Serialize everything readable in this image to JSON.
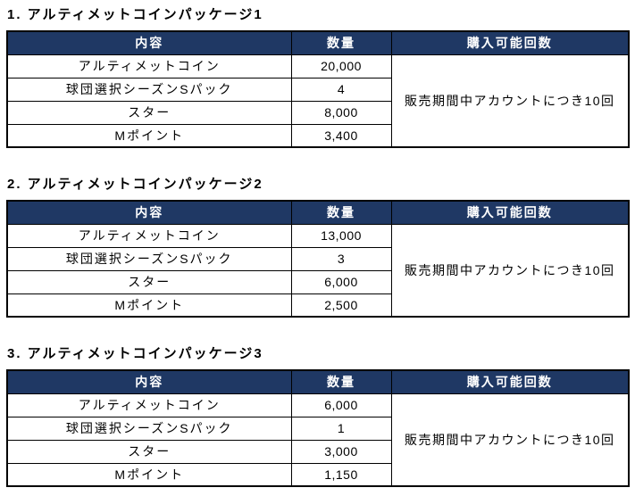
{
  "colors": {
    "header_bg": "#1F3864",
    "header_text": "#FFFFFF",
    "border": "#000000",
    "text": "#000000",
    "page_bg": "#FFFFFF"
  },
  "columns": {
    "content": "内容",
    "quantity": "数量",
    "purchase_limit": "購入可能回数"
  },
  "sections": [
    {
      "heading": "1. アルティメットコインパッケージ1",
      "purchase_limit": "販売期間中アカウントにつき10回",
      "rows": [
        {
          "content": "アルティメットコイン",
          "quantity": "20,000"
        },
        {
          "content": "球団選択シーズンSパック",
          "quantity": "4"
        },
        {
          "content": "スター",
          "quantity": "8,000"
        },
        {
          "content": "Mポイント",
          "quantity": "3,400"
        }
      ]
    },
    {
      "heading": "2. アルティメットコインパッケージ2",
      "purchase_limit": "販売期間中アカウントにつき10回",
      "rows": [
        {
          "content": "アルティメットコイン",
          "quantity": "13,000"
        },
        {
          "content": "球団選択シーズンSパック",
          "quantity": "3"
        },
        {
          "content": "スター",
          "quantity": "6,000"
        },
        {
          "content": "Mポイント",
          "quantity": "2,500"
        }
      ]
    },
    {
      "heading": "3. アルティメットコインパッケージ3",
      "purchase_limit": "販売期間中アカウントにつき10回",
      "rows": [
        {
          "content": "アルティメットコイン",
          "quantity": "6,000"
        },
        {
          "content": "球団選択シーズンSパック",
          "quantity": "1"
        },
        {
          "content": "スター",
          "quantity": "3,000"
        },
        {
          "content": "Mポイント",
          "quantity": "1,150"
        }
      ]
    }
  ]
}
